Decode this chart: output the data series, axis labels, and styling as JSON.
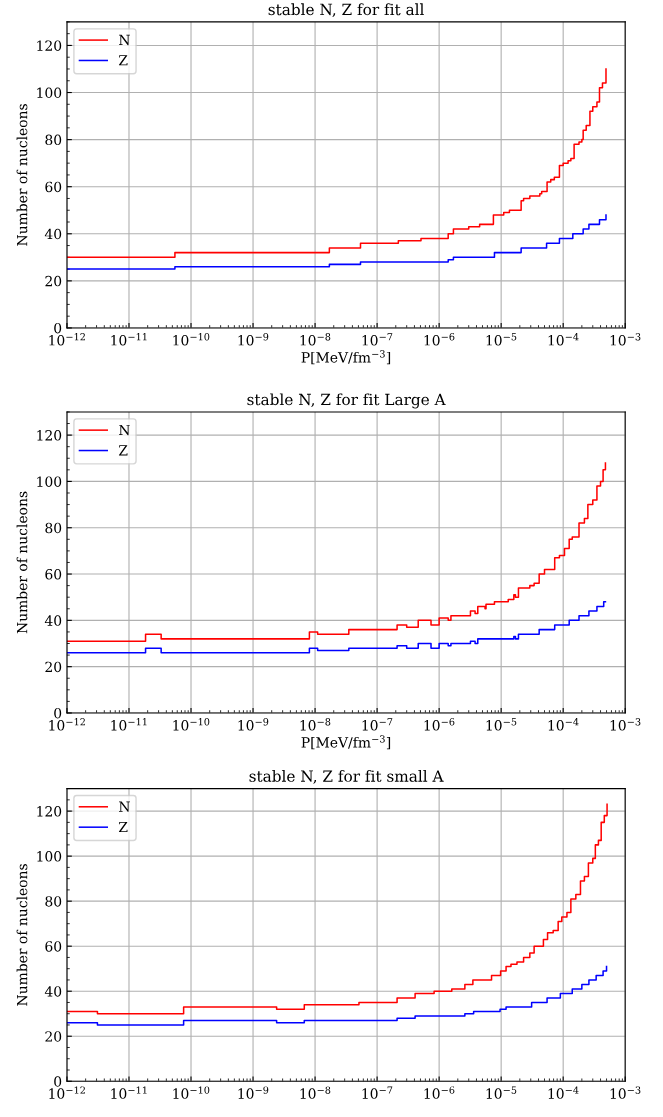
{
  "chart_data": [
    {
      "type": "step",
      "title": "stable N, Z for fit all",
      "xlabel": "P[MeV/fm$^{−3}$]",
      "ylabel": "Number of nucleons",
      "log": "x",
      "grid": true,
      "legend": "top left",
      "xlim": [
        1e-12,
        0.001
      ],
      "ylim": [
        0,
        130
      ],
      "xticks": [
        {
          "value": 1e-12,
          "label": "10$^{−12}$"
        },
        {
          "value": 1e-11,
          "label": "10$^{−11}$"
        },
        {
          "value": 1e-10,
          "label": "10$^{−10}$"
        },
        {
          "value": 1e-09,
          "label": "10$^{−9}$"
        },
        {
          "value": 1e-08,
          "label": "10$^{−8}$"
        },
        {
          "value": 1e-07,
          "label": "10$^{−7}$"
        },
        {
          "value": 1e-06,
          "label": "10$^{−6}$"
        },
        {
          "value": 1e-05,
          "label": "10$^{−5}$"
        },
        {
          "value": 0.0001,
          "label": "10$^{−4}$"
        },
        {
          "value": 0.001,
          "label": "10$^{−3}$"
        }
      ],
      "yticks": [
        0,
        20,
        40,
        60,
        80,
        100,
        120
      ],
      "series": [
        {
          "name": "N",
          "color": "#ff0000",
          "x": [
            1e-12,
            5.5e-11,
            1.7e-08,
            5.4e-08,
            2.2e-07,
            5.1e-07,
            1.4e-06,
            1.7e-06,
            3e-06,
            4.5e-06,
            7.5e-06,
            1.1e-05,
            1.36e-05,
            2.1e-05,
            2.3e-05,
            2.9e-05,
            4.2e-05,
            4.5e-05,
            5.5e-05,
            6.3e-05,
            7.2e-05,
            8.7e-05,
            0.0001,
            0.00012,
            0.000133,
            0.00015,
            0.00018,
            0.0002,
            0.00021,
            0.000235,
            0.00027,
            0.0003,
            0.00035,
            0.000385,
            0.00043,
            0.00049
          ],
          "values": [
            30,
            32,
            34,
            36,
            37,
            38,
            40,
            42,
            43,
            44,
            48,
            49,
            50,
            54,
            55,
            56,
            57,
            58,
            62,
            63,
            64,
            69,
            70,
            71,
            72,
            78,
            79,
            80,
            84,
            86,
            92,
            94,
            96,
            102,
            104,
            110
          ]
        },
        {
          "name": "Z",
          "color": "#0000ff",
          "x": [
            1e-12,
            5.5e-11,
            1.7e-08,
            5.4e-08,
            1.4e-06,
            1.7e-06,
            7.8e-06,
            2.1e-05,
            5.4e-05,
            8.7e-05,
            0.000143,
            0.00021,
            0.00026,
            0.000385,
            0.00049
          ],
          "values": [
            25,
            26,
            27,
            28,
            29,
            30,
            32,
            34,
            36,
            38,
            40,
            42,
            44,
            46,
            48
          ]
        }
      ]
    },
    {
      "type": "step",
      "title": "stable N, Z for fit Large A",
      "xlabel": "P[MeV/fm$^{−3}$]",
      "ylabel": "Number of nucleons",
      "log": "x",
      "grid": true,
      "legend": "top left",
      "xlim": [
        1e-12,
        0.001
      ],
      "ylim": [
        0,
        130
      ],
      "xticks": [
        {
          "value": 1e-12,
          "label": "10$^{−12}$"
        },
        {
          "value": 1e-11,
          "label": "10$^{−11}$"
        },
        {
          "value": 1e-10,
          "label": "10$^{−10}$"
        },
        {
          "value": 1e-09,
          "label": "10$^{−9}$"
        },
        {
          "value": 1e-08,
          "label": "10$^{−8}$"
        },
        {
          "value": 1e-07,
          "label": "10$^{−7}$"
        },
        {
          "value": 1e-06,
          "label": "10$^{−6}$"
        },
        {
          "value": 1e-05,
          "label": "10$^{−5}$"
        },
        {
          "value": 0.0001,
          "label": "10$^{−4}$"
        },
        {
          "value": 0.001,
          "label": "10$^{−3}$"
        }
      ],
      "yticks": [
        0,
        20,
        40,
        60,
        80,
        100,
        120
      ],
      "series": [
        {
          "name": "N",
          "color": "#ff0000",
          "x": [
            1e-12,
            1.85e-11,
            3.3e-11,
            8.1e-09,
            1.1e-08,
            3.5e-08,
            2.1e-07,
            3e-07,
            4.6e-07,
            7.4e-07,
            1e-06,
            1.4e-06,
            1.55e-06,
            3.2e-06,
            3.8e-06,
            4.2e-06,
            5.5e-06,
            5.7e-06,
            7.8e-06,
            1.3e-05,
            1.6e-05,
            1.7e-05,
            1.9e-05,
            2.9e-05,
            3.4e-05,
            4.1e-05,
            5e-05,
            7.3e-05,
            8.7e-05,
            0.000105,
            0.000125,
            0.00014,
            0.00018,
            0.00022,
            0.00025,
            0.0003,
            0.00035,
            0.0004,
            0.00044,
            0.00048
          ],
          "values": [
            31,
            34,
            32,
            35,
            34,
            36,
            38,
            37,
            40,
            38,
            41,
            40,
            42,
            44,
            43,
            46,
            45,
            47,
            48,
            49,
            51,
            50,
            54,
            55,
            56,
            60,
            62,
            67,
            68,
            71,
            75,
            76,
            82,
            84,
            90,
            92,
            98,
            100,
            105,
            108
          ]
        },
        {
          "name": "Z",
          "color": "#0000ff",
          "x": [
            1e-12,
            1.85e-11,
            3.3e-11,
            8.1e-09,
            1.1e-08,
            3.5e-08,
            2.1e-07,
            3e-07,
            4.6e-07,
            7.4e-07,
            1e-06,
            1.4e-06,
            1.55e-06,
            3.2e-06,
            3.8e-06,
            4.2e-06,
            1.6e-05,
            1.7e-05,
            1.9e-05,
            4.1e-05,
            7.3e-05,
            0.000125,
            0.00018,
            0.00026,
            0.00035,
            0.00045,
            0.00048
          ],
          "values": [
            26,
            28,
            26,
            28,
            27,
            28,
            29,
            28,
            30,
            28,
            30,
            29,
            30,
            31,
            30,
            32,
            33,
            32,
            34,
            36,
            38,
            40,
            42,
            44,
            46,
            48,
            48
          ]
        }
      ]
    },
    {
      "type": "step",
      "title": "stable N, Z for fit small A",
      "ylabel": "Number of nucleons",
      "log": "x",
      "grid": true,
      "legend": "top left",
      "xlim": [
        1e-12,
        0.001
      ],
      "ylim": [
        0,
        130
      ],
      "xticks": [
        {
          "value": 1e-12,
          "label": "10$^{−12}$"
        },
        {
          "value": 1e-11,
          "label": "10$^{−11}$"
        },
        {
          "value": 1e-10,
          "label": "10$^{−10}$"
        },
        {
          "value": 1e-09,
          "label": "10$^{−9}$"
        },
        {
          "value": 1e-08,
          "label": "10$^{−8}$"
        },
        {
          "value": 1e-07,
          "label": "10$^{−7}$"
        },
        {
          "value": 1e-06,
          "label": "10$^{−6}$"
        },
        {
          "value": 1e-05,
          "label": "10$^{−5}$"
        },
        {
          "value": 0.0001,
          "label": "10$^{−4}$"
        },
        {
          "value": 0.001,
          "label": "10$^{−3}$"
        }
      ],
      "yticks": [
        0,
        20,
        40,
        60,
        80,
        100,
        120
      ],
      "series": [
        {
          "name": "N",
          "color": "#ff0000",
          "x": [
            1e-12,
            3.1e-12,
            7.6e-11,
            2.4e-09,
            6.7e-09,
            5.1e-08,
            2.1e-07,
            4.1e-07,
            8.3e-07,
            1.6e-06,
            2.6e-06,
            3.5e-06,
            7e-06,
            9.8e-06,
            1.2e-05,
            1.44e-05,
            1.8e-05,
            2.3e-05,
            2.9e-05,
            3.4e-05,
            4.8e-05,
            5.6e-05,
            6.9e-05,
            8.3e-05,
            9.5e-05,
            0.000115,
            0.000133,
            0.00016,
            0.00019,
            0.00022,
            0.000255,
            0.0003,
            0.00033,
            0.00037,
            0.00041,
            0.00046,
            0.00051
          ],
          "values": [
            31,
            30,
            33,
            32,
            34,
            35,
            37,
            39,
            40,
            41,
            43,
            45,
            47,
            49,
            51,
            52,
            53,
            55,
            57,
            60,
            63,
            66,
            67,
            71,
            73,
            75,
            81,
            83,
            89,
            91,
            97,
            99,
            105,
            107,
            115,
            118,
            123
          ]
        },
        {
          "name": "Z",
          "color": "#0000ff",
          "x": [
            1e-12,
            3.1e-12,
            7.6e-11,
            2.4e-09,
            6.7e-09,
            2.1e-07,
            4.1e-07,
            2.6e-06,
            3.6e-06,
            9.6e-06,
            1.2e-05,
            3.1e-05,
            5.5e-05,
            9e-05,
            0.00014,
            0.0002,
            0.00026,
            0.00034,
            0.00044,
            0.0005
          ],
          "values": [
            26,
            25,
            27,
            26,
            27,
            28,
            29,
            30,
            31,
            32,
            33,
            35,
            37,
            39,
            41,
            43,
            45,
            47,
            49,
            51
          ]
        }
      ]
    }
  ]
}
